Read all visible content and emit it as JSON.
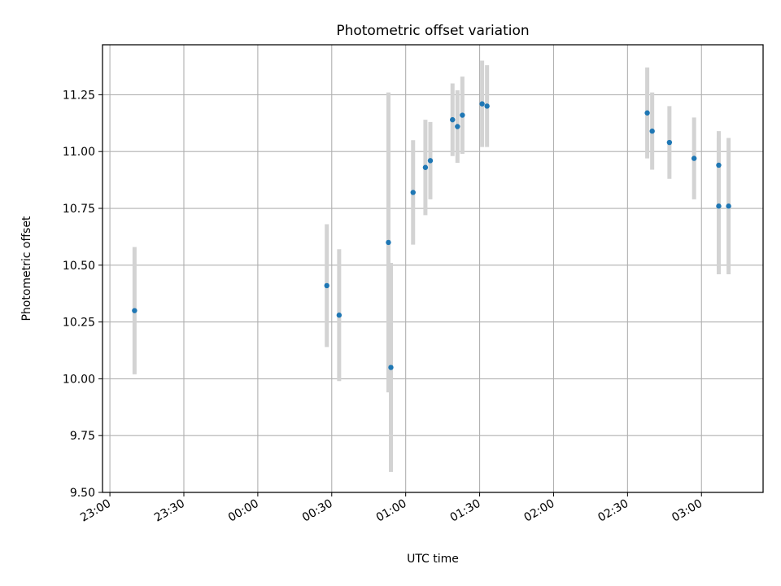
{
  "chart_data": {
    "type": "scatter",
    "title": "Photometric offset variation",
    "xlabel": "UTC time",
    "ylabel": "Photometric offset",
    "x_unit": "UTC time (HH:MM); points after midnight are on the following day",
    "xlim": [
      "22:57",
      "03:25"
    ],
    "ylim": [
      9.5,
      11.47
    ],
    "x_ticks": [
      "23:00",
      "23:30",
      "00:00",
      "00:30",
      "01:00",
      "01:30",
      "02:00",
      "02:30",
      "03:00"
    ],
    "y_ticks": [
      9.5,
      9.75,
      10.0,
      10.25,
      10.5,
      10.75,
      11.0,
      11.25
    ],
    "y_tick_labels": [
      "9.50",
      "9.75",
      "10.00",
      "10.25",
      "10.50",
      "10.75",
      "11.00",
      "11.25"
    ],
    "grid": true,
    "colors": {
      "point": "#1f77b4",
      "errorbar": "#d3d3d3",
      "grid": "#b0b0b0"
    },
    "points": [
      {
        "time": "23:10",
        "y": 10.3,
        "yerr": 0.28
      },
      {
        "time": "00:28",
        "y": 10.41,
        "yerr": 0.27
      },
      {
        "time": "00:33",
        "y": 10.28,
        "yerr": 0.29
      },
      {
        "time": "00:53",
        "y": 10.6,
        "yerr": 0.66
      },
      {
        "time": "00:54",
        "y": 10.05,
        "yerr": 0.46
      },
      {
        "time": "01:03",
        "y": 10.82,
        "yerr": 0.23
      },
      {
        "time": "01:08",
        "y": 10.93,
        "yerr": 0.21
      },
      {
        "time": "01:10",
        "y": 10.96,
        "yerr": 0.17
      },
      {
        "time": "01:19",
        "y": 11.14,
        "yerr": 0.16
      },
      {
        "time": "01:21",
        "y": 11.11,
        "yerr": 0.16
      },
      {
        "time": "01:23",
        "y": 11.16,
        "yerr": 0.17
      },
      {
        "time": "01:31",
        "y": 11.21,
        "yerr": 0.19
      },
      {
        "time": "01:33",
        "y": 11.2,
        "yerr": 0.18
      },
      {
        "time": "02:38",
        "y": 11.17,
        "yerr": 0.2
      },
      {
        "time": "02:40",
        "y": 11.09,
        "yerr": 0.17
      },
      {
        "time": "02:47",
        "y": 11.04,
        "yerr": 0.16
      },
      {
        "time": "02:57",
        "y": 10.97,
        "yerr": 0.18
      },
      {
        "time": "03:07",
        "y": 10.94,
        "yerr": 0.15
      },
      {
        "time": "03:07",
        "y": 10.76,
        "yerr": 0.3
      },
      {
        "time": "03:11",
        "y": 10.76,
        "yerr": 0.3
      }
    ]
  }
}
